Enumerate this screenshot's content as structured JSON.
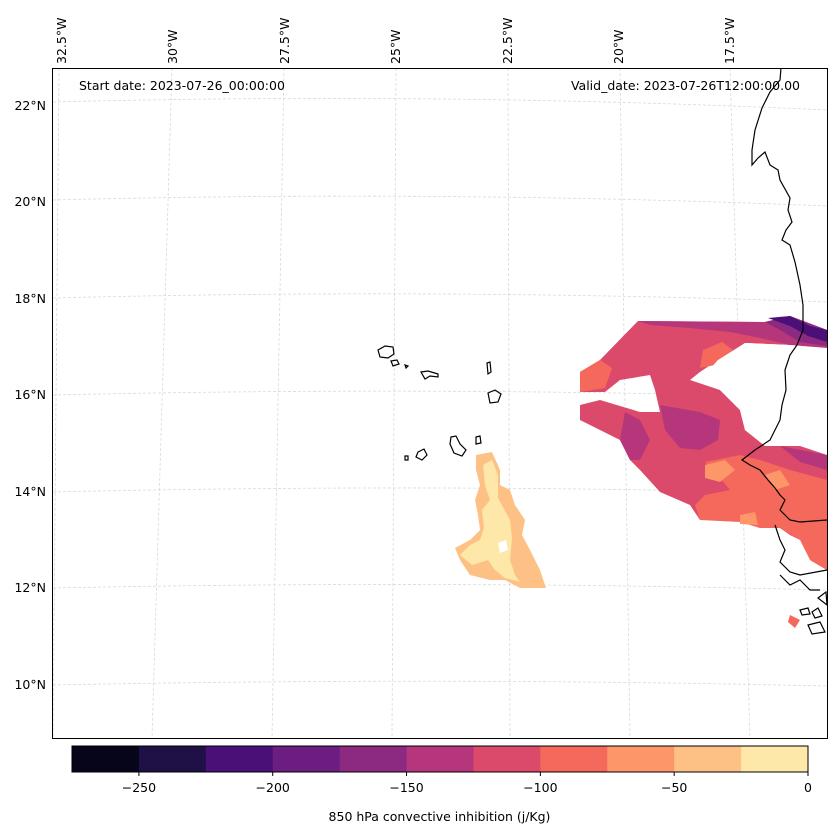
{
  "header": {
    "start_date": "Start date: 2023-07-26_00:00:00",
    "valid_date": "Valid_date: 2023-07-26T12:00:00.00"
  },
  "map": {
    "lon_labels": [
      "32.5°W",
      "30°W",
      "27.5°W",
      "25°W",
      "22.5°W",
      "20°W",
      "17.5°W"
    ],
    "lat_labels": [
      "22°N",
      "20°N",
      "18°N",
      "16°N",
      "14°N",
      "12°N",
      "10°N"
    ],
    "coastline_color": "#000000",
    "grid_color": "#d9d9d9"
  },
  "colorbar": {
    "label": "850 hPa convective inhibition (j/Kg)",
    "range": [
      -275,
      0
    ],
    "ticks": [
      "−250",
      "−200",
      "−150",
      "−100",
      "−50",
      "0"
    ],
    "tick_values": [
      -250,
      -200,
      -150,
      -100,
      -50,
      0
    ],
    "levels": [
      -275,
      -250,
      -225,
      -200,
      -175,
      -150,
      -125,
      -100,
      -75,
      -50,
      -25,
      0
    ],
    "colors": [
      "#06051a",
      "#1f1146",
      "#4a1078",
      "#6b1d81",
      "#8c2981",
      "#b5367a",
      "#dc4a6b",
      "#f4695c",
      "#fd9668",
      "#fec185",
      "#fde7a9"
    ]
  }
}
